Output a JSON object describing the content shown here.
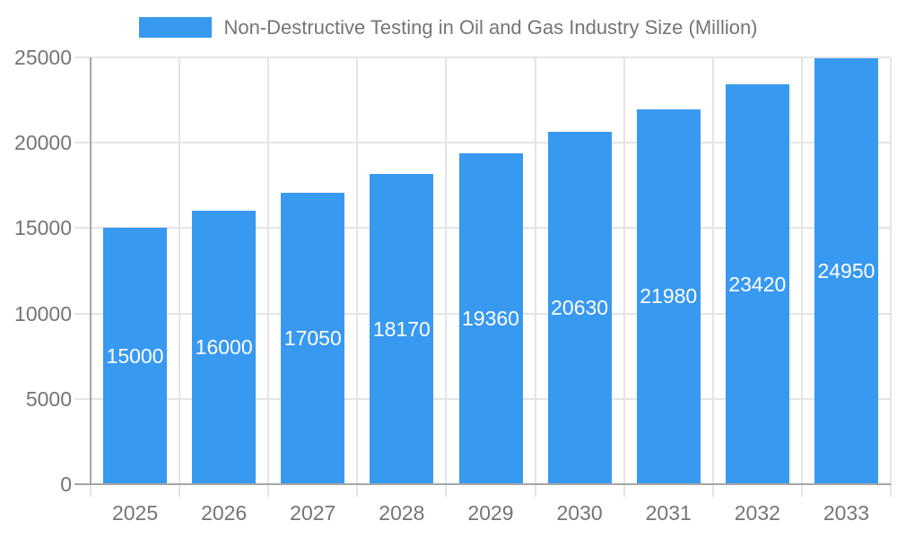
{
  "chart_data": {
    "type": "bar",
    "title": "Non-Destructive Testing in Oil and Gas Industry Size (Million)",
    "legend_label": "Non-Destructive Testing in Oil and Gas Industry Size (Million)",
    "categories": [
      "2025",
      "2026",
      "2027",
      "2028",
      "2029",
      "2030",
      "2031",
      "2032",
      "2033"
    ],
    "values": [
      15000,
      16000,
      17050,
      18170,
      19360,
      20630,
      21980,
      23420,
      24950
    ],
    "xlabel": "",
    "ylabel": "",
    "ylim": [
      0,
      25000
    ],
    "yticks": [
      0,
      5000,
      10000,
      15000,
      20000,
      25000
    ],
    "grid": true,
    "legend_position": "top-center",
    "value_labels_inside_bars": true
  },
  "colors": {
    "bar": "#3899F0",
    "bar_value_text": "#FFFFFF",
    "gridline": "#E4E4E4",
    "axis_line": "#A6A6A6",
    "tick_text": "#757575",
    "title_text": "#757575",
    "background": "#FFFFFF"
  }
}
